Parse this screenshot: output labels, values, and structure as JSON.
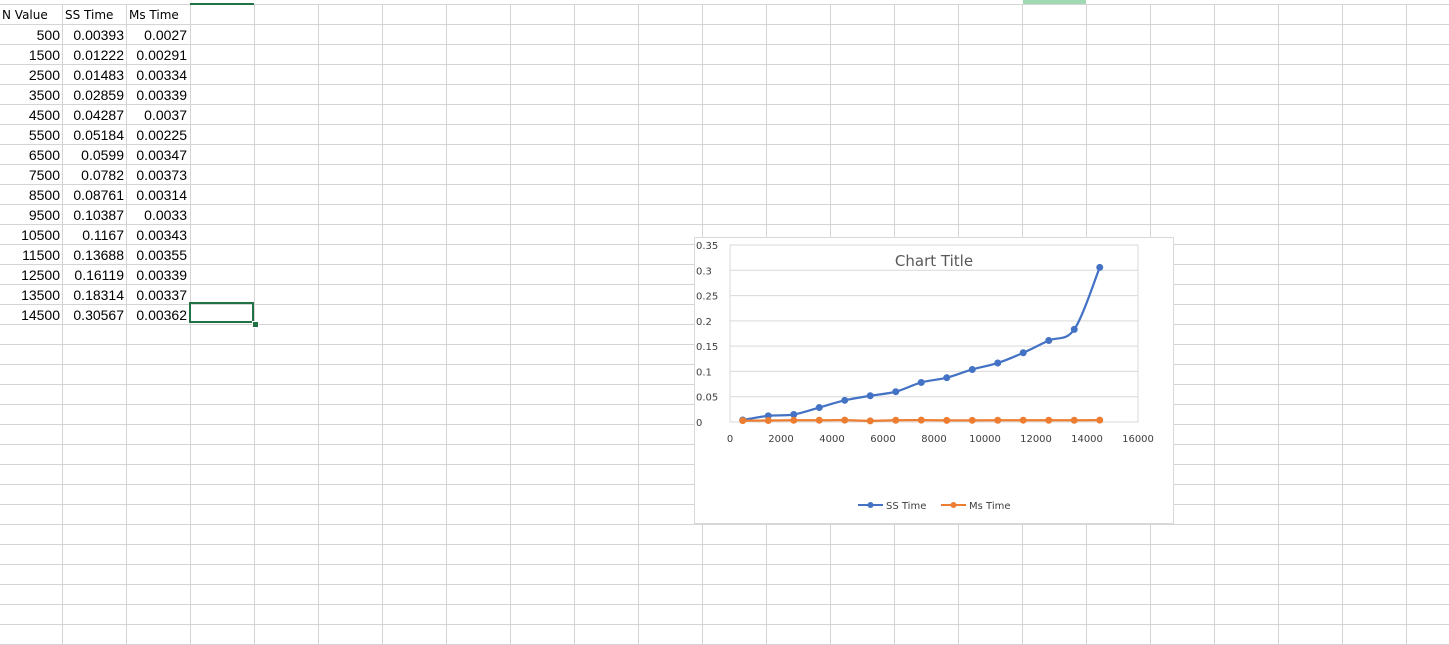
{
  "headers": {
    "n_value": "N Value",
    "ss_time": "SS Time",
    "ms_time": "Ms Time"
  },
  "rows": [
    {
      "n": "500",
      "ss": "0.00393",
      "ms": "0.0027"
    },
    {
      "n": "1500",
      "ss": "0.01222",
      "ms": "0.00291"
    },
    {
      "n": "2500",
      "ss": "0.01483",
      "ms": "0.00334"
    },
    {
      "n": "3500",
      "ss": "0.02859",
      "ms": "0.00339"
    },
    {
      "n": "4500",
      "ss": "0.04287",
      "ms": "0.0037"
    },
    {
      "n": "5500",
      "ss": "0.05184",
      "ms": "0.00225"
    },
    {
      "n": "6500",
      "ss": "0.0599",
      "ms": "0.00347"
    },
    {
      "n": "7500",
      "ss": "0.0782",
      "ms": "0.00373"
    },
    {
      "n": "8500",
      "ss": "0.08761",
      "ms": "0.00314"
    },
    {
      "n": "9500",
      "ss": "0.10387",
      "ms": "0.0033"
    },
    {
      "n": "10500",
      "ss": "0.1167",
      "ms": "0.00343"
    },
    {
      "n": "11500",
      "ss": "0.13688",
      "ms": "0.00355"
    },
    {
      "n": "12500",
      "ss": "0.16119",
      "ms": "0.00339"
    },
    {
      "n": "13500",
      "ss": "0.18314",
      "ms": "0.00337"
    },
    {
      "n": "14500",
      "ss": "0.30567",
      "ms": "0.00362"
    }
  ],
  "chart_data": {
    "type": "scatter",
    "title": "Chart Title",
    "xlim": [
      0,
      16000
    ],
    "ylim": [
      0,
      0.35
    ],
    "x_ticks": [
      "0",
      "2000",
      "4000",
      "6000",
      "8000",
      "10000",
      "12000",
      "14000",
      "16000"
    ],
    "y_ticks": [
      "0",
      "0.05",
      "0.1",
      "0.15",
      "0.2",
      "0.25",
      "0.3",
      "0.35"
    ],
    "grid": true,
    "legend_position": "bottom",
    "x": [
      500,
      1500,
      2500,
      3500,
      4500,
      5500,
      6500,
      7500,
      8500,
      9500,
      10500,
      11500,
      12500,
      13500,
      14500
    ],
    "series": [
      {
        "name": "SS Time",
        "color": "#4472c4",
        "values": [
          0.00393,
          0.01222,
          0.01483,
          0.02859,
          0.04287,
          0.05184,
          0.0599,
          0.0782,
          0.08761,
          0.10387,
          0.1167,
          0.13688,
          0.16119,
          0.18314,
          0.30567
        ]
      },
      {
        "name": "Ms Time",
        "color": "#ed7d31",
        "values": [
          0.0027,
          0.00291,
          0.00334,
          0.00339,
          0.0037,
          0.00225,
          0.00347,
          0.00373,
          0.00314,
          0.0033,
          0.00343,
          0.00355,
          0.00339,
          0.00337,
          0.00362
        ]
      }
    ]
  }
}
